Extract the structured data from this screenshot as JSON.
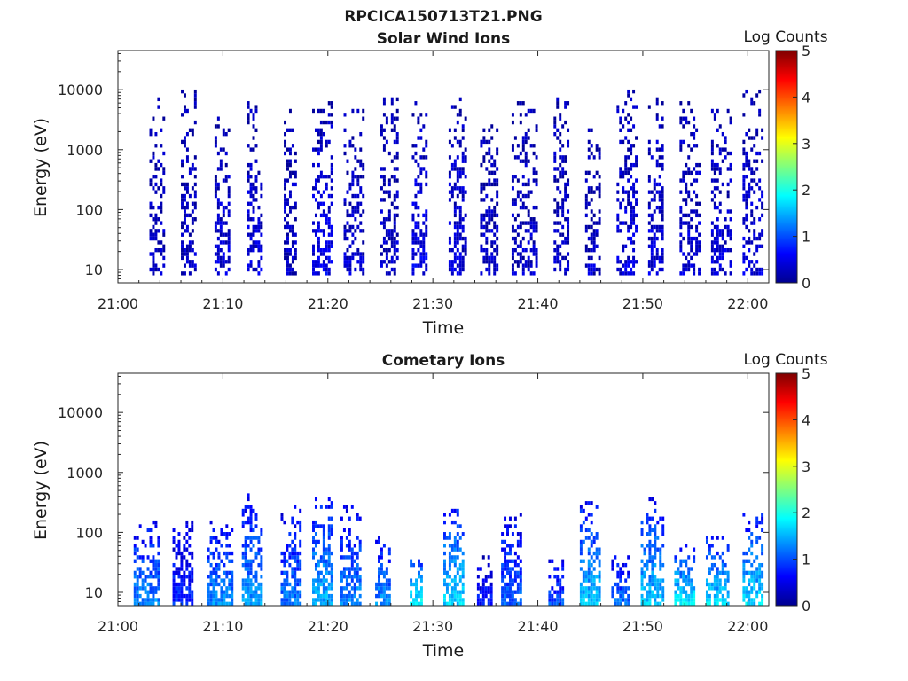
{
  "figure_title": "RPCICA150713T21.PNG",
  "colors": {
    "colormap": [
      "#00008f",
      "#0000ff",
      "#007fff",
      "#00ffff",
      "#7fff7f",
      "#ffff00",
      "#ff7f00",
      "#ff0000",
      "#7f0000"
    ],
    "axis": "#262626",
    "background": "#ffffff"
  },
  "chart_data": [
    {
      "type": "heatmap",
      "title": "Solar Wind Ions",
      "xlabel": "Time",
      "ylabel": "Energy (eV)",
      "x_tick_labels": [
        "21:00",
        "21:10",
        "21:20",
        "21:30",
        "21:40",
        "21:50",
        "22:00"
      ],
      "x_range": [
        "21:00",
        "22:02"
      ],
      "y_scale": "log",
      "y_tick_values": [
        10,
        100,
        1000,
        10000
      ],
      "y_tick_labels": [
        "10",
        "100",
        "1000",
        "10000"
      ],
      "y_range": [
        6,
        45000
      ],
      "colorbar": {
        "label": "Log Counts",
        "range": [
          0,
          5
        ],
        "tick_labels": [
          "0",
          "1",
          "2",
          "3",
          "4",
          "5"
        ]
      },
      "grid": false,
      "bursts": [
        {
          "start_min": 3.0,
          "end_min": 4.5,
          "e_low": 8,
          "e_high": 7000,
          "level": 0.3
        },
        {
          "start_min": 6.0,
          "end_min": 7.5,
          "e_low": 8,
          "e_high": 9000,
          "level": 0.3
        },
        {
          "start_min": 9.2,
          "end_min": 10.5,
          "e_low": 8,
          "e_high": 4000,
          "level": 0.4
        },
        {
          "start_min": 12.3,
          "end_min": 13.8,
          "e_low": 8,
          "e_high": 7000,
          "level": 0.4
        },
        {
          "start_min": 15.8,
          "end_min": 17.0,
          "e_low": 8,
          "e_high": 5000,
          "level": 0.3
        },
        {
          "start_min": 18.5,
          "end_min": 20.5,
          "e_low": 8,
          "e_high": 6000,
          "level": 0.5
        },
        {
          "start_min": 21.5,
          "end_min": 23.5,
          "e_low": 8,
          "e_high": 6000,
          "level": 0.3
        },
        {
          "start_min": 25.0,
          "end_min": 26.7,
          "e_low": 8,
          "e_high": 7000,
          "level": 0.3
        },
        {
          "start_min": 28.0,
          "end_min": 29.5,
          "e_low": 8,
          "e_high": 6000,
          "level": 0.5
        },
        {
          "start_min": 31.5,
          "end_min": 33.2,
          "e_low": 8,
          "e_high": 7000,
          "level": 0.4
        },
        {
          "start_min": 34.5,
          "end_min": 36.2,
          "e_low": 8,
          "e_high": 3000,
          "level": 0.3
        },
        {
          "start_min": 37.5,
          "end_min": 39.8,
          "e_low": 8,
          "e_high": 6000,
          "level": 0.3
        },
        {
          "start_min": 41.5,
          "end_min": 43.0,
          "e_low": 8,
          "e_high": 8000,
          "level": 0.3
        },
        {
          "start_min": 44.5,
          "end_min": 46.0,
          "e_low": 8,
          "e_high": 2000,
          "level": 0.3
        },
        {
          "start_min": 47.5,
          "end_min": 49.5,
          "e_low": 8,
          "e_high": 9000,
          "level": 0.4
        },
        {
          "start_min": 50.5,
          "end_min": 52.0,
          "e_low": 8,
          "e_high": 8000,
          "level": 0.4
        },
        {
          "start_min": 53.5,
          "end_min": 55.5,
          "e_low": 8,
          "e_high": 7000,
          "level": 0.4
        },
        {
          "start_min": 56.5,
          "end_min": 58.5,
          "e_low": 8,
          "e_high": 7000,
          "level": 0.4
        },
        {
          "start_min": 59.5,
          "end_min": 61.5,
          "e_low": 8,
          "e_high": 9000,
          "level": 0.4
        }
      ]
    },
    {
      "type": "heatmap",
      "title": "Cometary Ions",
      "xlabel": "Time",
      "ylabel": "Energy (eV)",
      "x_tick_labels": [
        "21:00",
        "21:10",
        "21:20",
        "21:30",
        "21:40",
        "21:50",
        "22:00"
      ],
      "x_range": [
        "21:00",
        "22:02"
      ],
      "y_scale": "log",
      "y_tick_values": [
        10,
        100,
        1000,
        10000
      ],
      "y_tick_labels": [
        "10",
        "100",
        "1000",
        "10000"
      ],
      "y_range": [
        6,
        45000
      ],
      "colorbar": {
        "label": "Log Counts",
        "range": [
          0,
          5
        ],
        "tick_labels": [
          "0",
          "1",
          "2",
          "3",
          "4",
          "5"
        ]
      },
      "grid": false,
      "bursts": [
        {
          "start_min": 1.5,
          "end_min": 3.8,
          "e_low": 6,
          "e_high": 150,
          "level": 1.3
        },
        {
          "start_min": 5.2,
          "end_min": 7.0,
          "e_low": 6,
          "e_high": 200,
          "level": 0.8
        },
        {
          "start_min": 8.5,
          "end_min": 10.8,
          "e_low": 6,
          "e_high": 150,
          "level": 1.3
        },
        {
          "start_min": 11.8,
          "end_min": 13.6,
          "e_low": 6,
          "e_high": 400,
          "level": 1.4
        },
        {
          "start_min": 15.5,
          "end_min": 17.3,
          "e_low": 6,
          "e_high": 250,
          "level": 1.2
        },
        {
          "start_min": 18.5,
          "end_min": 20.3,
          "e_low": 6,
          "e_high": 450,
          "level": 1.5
        },
        {
          "start_min": 21.2,
          "end_min": 23.0,
          "e_low": 6,
          "e_high": 250,
          "level": 1.3
        },
        {
          "start_min": 24.5,
          "end_min": 26.0,
          "e_low": 6,
          "e_high": 100,
          "level": 1.3
        },
        {
          "start_min": 27.8,
          "end_min": 29.0,
          "e_low": 6,
          "e_high": 40,
          "level": 1.9
        },
        {
          "start_min": 31.0,
          "end_min": 33.0,
          "e_low": 6,
          "e_high": 250,
          "level": 1.7
        },
        {
          "start_min": 34.2,
          "end_min": 35.5,
          "e_low": 6,
          "e_high": 40,
          "level": 0.7
        },
        {
          "start_min": 36.5,
          "end_min": 38.5,
          "e_low": 6,
          "e_high": 250,
          "level": 1.1
        },
        {
          "start_min": 41.0,
          "end_min": 42.5,
          "e_low": 6,
          "e_high": 40,
          "level": 1.0
        },
        {
          "start_min": 44.0,
          "end_min": 46.0,
          "e_low": 6,
          "e_high": 300,
          "level": 1.6
        },
        {
          "start_min": 47.0,
          "end_min": 48.6,
          "e_low": 6,
          "e_high": 40,
          "level": 1.2
        },
        {
          "start_min": 49.8,
          "end_min": 52.0,
          "e_low": 6,
          "e_high": 350,
          "level": 1.6
        },
        {
          "start_min": 53.0,
          "end_min": 55.0,
          "e_low": 6,
          "e_high": 60,
          "level": 1.8
        },
        {
          "start_min": 56.0,
          "end_min": 58.2,
          "e_low": 6,
          "e_high": 80,
          "level": 1.7
        },
        {
          "start_min": 59.5,
          "end_min": 61.5,
          "e_low": 6,
          "e_high": 200,
          "level": 1.7
        }
      ]
    }
  ]
}
